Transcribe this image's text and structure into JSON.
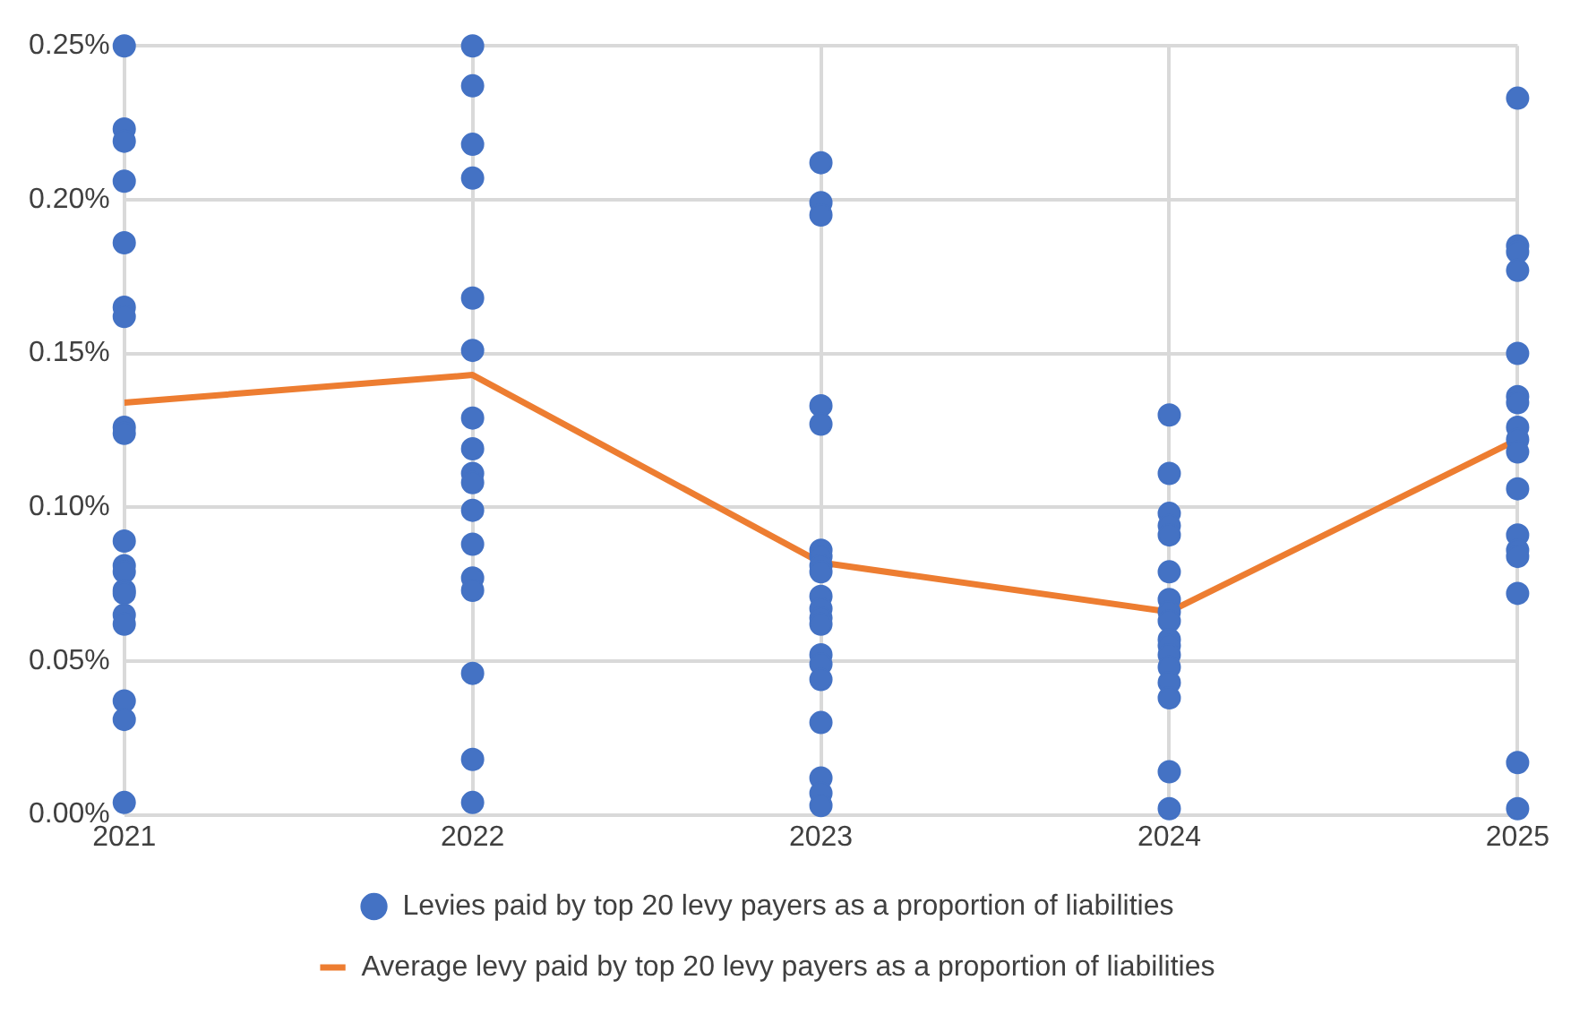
{
  "chart_data": {
    "type": "scatter",
    "xlim": [
      2021,
      2025
    ],
    "xticks": [
      2021,
      2022,
      2023,
      2024,
      2025
    ],
    "ylim": [
      0,
      0.25
    ],
    "yticks": [
      {
        "value": 0,
        "label": "0.00%"
      },
      {
        "value": 0.05,
        "label": "0.05%"
      },
      {
        "value": 0.1,
        "label": "0.10%"
      },
      {
        "value": 0.15,
        "label": "0.15%"
      },
      {
        "value": 0.2,
        "label": "0.20%"
      },
      {
        "value": 0.25,
        "label": "0.25%"
      }
    ],
    "grid": true,
    "legend": "bottom",
    "series": [
      {
        "name": "Levies paid by top 20 levy payers as a proportion of liabilities",
        "marker": "circle",
        "color": "#4472c4",
        "x": [
          2021,
          2021,
          2021,
          2021,
          2021,
          2021,
          2021,
          2021,
          2021,
          2021,
          2021,
          2021,
          2021,
          2021,
          2021,
          2021,
          2021,
          2021,
          2021,
          2022,
          2022,
          2022,
          2022,
          2022,
          2022,
          2022,
          2022,
          2022,
          2022,
          2022,
          2022,
          2022,
          2022,
          2022,
          2022,
          2022,
          2023,
          2023,
          2023,
          2023,
          2023,
          2023,
          2023,
          2023,
          2023,
          2023,
          2023,
          2023,
          2023,
          2023,
          2023,
          2023,
          2023,
          2023,
          2023,
          2023,
          2024,
          2024,
          2024,
          2024,
          2024,
          2024,
          2024,
          2024,
          2024,
          2024,
          2024,
          2024,
          2024,
          2024,
          2024,
          2024,
          2024,
          2025,
          2025,
          2025,
          2025,
          2025,
          2025,
          2025,
          2025,
          2025,
          2025,
          2025,
          2025,
          2025,
          2025,
          2025,
          2025,
          2025
        ],
        "values": [
          0.25,
          0.223,
          0.219,
          0.206,
          0.186,
          0.165,
          0.162,
          0.126,
          0.124,
          0.089,
          0.081,
          0.079,
          0.073,
          0.072,
          0.065,
          0.062,
          0.037,
          0.031,
          0.004,
          0.25,
          0.237,
          0.218,
          0.207,
          0.168,
          0.151,
          0.129,
          0.119,
          0.111,
          0.108,
          0.099,
          0.088,
          0.077,
          0.073,
          0.046,
          0.018,
          0.004,
          0.212,
          0.199,
          0.195,
          0.133,
          0.127,
          0.086,
          0.084,
          0.081,
          0.079,
          0.071,
          0.067,
          0.064,
          0.062,
          0.052,
          0.049,
          0.044,
          0.03,
          0.012,
          0.007,
          0.003,
          0.13,
          0.111,
          0.098,
          0.094,
          0.091,
          0.079,
          0.07,
          0.066,
          0.063,
          0.057,
          0.055,
          0.052,
          0.048,
          0.043,
          0.038,
          0.014,
          0.002,
          0.233,
          0.185,
          0.183,
          0.177,
          0.15,
          0.136,
          0.134,
          0.126,
          0.122,
          0.118,
          0.106,
          0.091,
          0.086,
          0.084,
          0.072,
          0.017,
          0.002
        ]
      },
      {
        "name": "Average levy paid by top 20 levy payers as a proportion of liabilities",
        "type": "line",
        "color": "#ed7d31",
        "x": [
          2021,
          2022,
          2023,
          2024,
          2025
        ],
        "values": [
          0.134,
          0.143,
          0.082,
          0.066,
          0.122
        ]
      }
    ]
  }
}
